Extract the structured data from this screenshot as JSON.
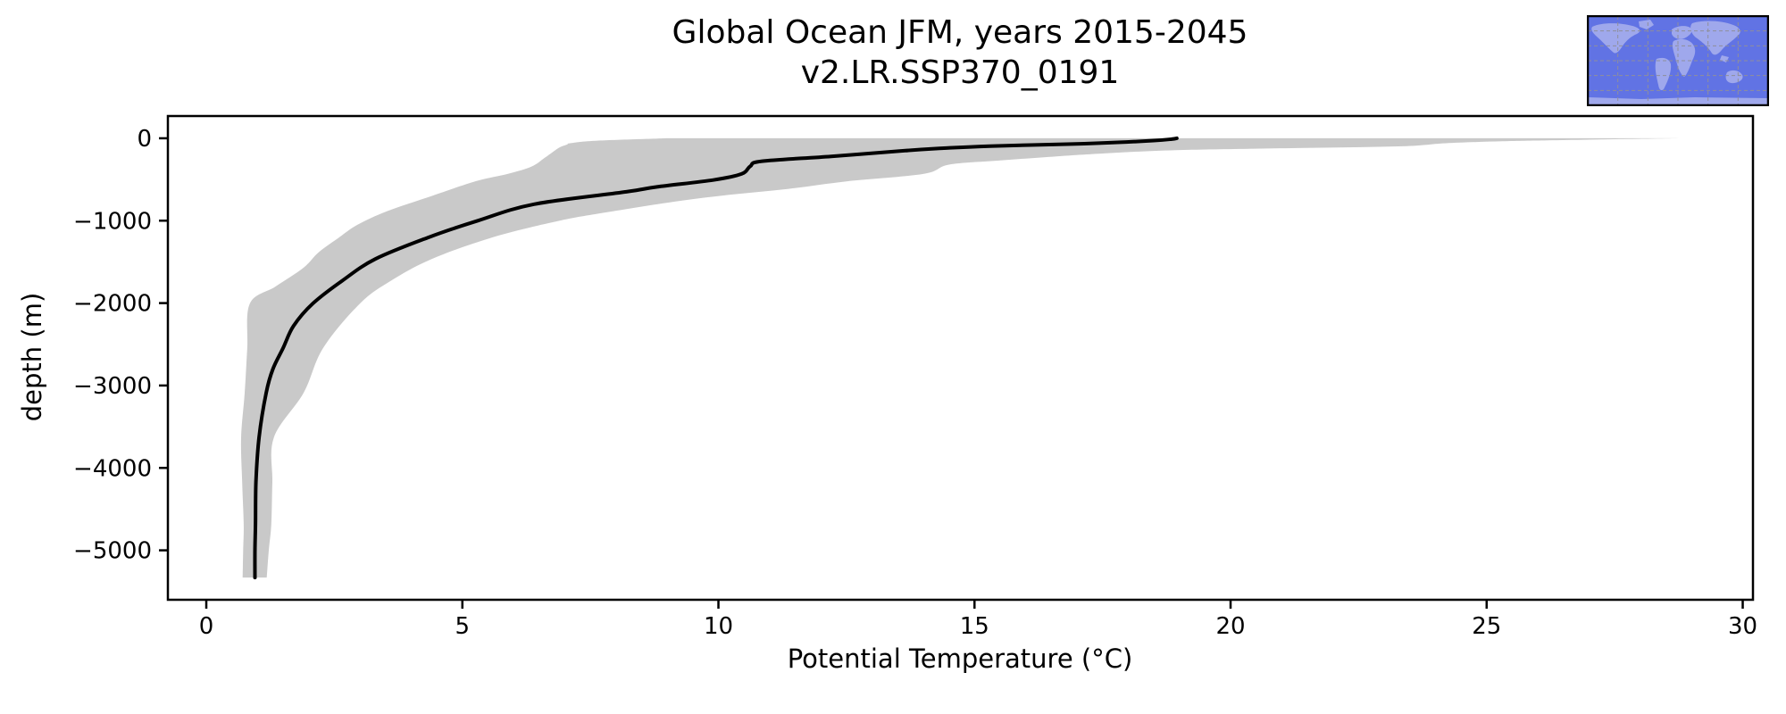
{
  "title": {
    "line1": "Global Ocean JFM, years 2015-2045",
    "line2": "v2.LR.SSP370_0191"
  },
  "chart_data": {
    "type": "line",
    "title": "Global Ocean JFM, years 2015-2045\nv2.LR.SSP370_0191",
    "xlabel": "Potential Temperature (°C)",
    "ylabel": "depth (m)",
    "xlim": [
      -0.75,
      30.2
    ],
    "ylim": [
      -5600,
      270
    ],
    "xticks": [
      0,
      5,
      10,
      15,
      20,
      25,
      30
    ],
    "yticks": [
      0,
      -1000,
      -2000,
      -3000,
      -4000,
      -5000
    ],
    "grid": false,
    "legend": "none",
    "line_color": "#000000",
    "band_color": "#c9c9c9",
    "series": [
      {
        "name": "mean_profile",
        "style": "line",
        "points_temp_depth": [
          [
            18.95,
            0
          ],
          [
            18.85,
            -10
          ],
          [
            18.5,
            -28
          ],
          [
            17.8,
            -50
          ],
          [
            16.9,
            -70
          ],
          [
            15.3,
            -95
          ],
          [
            14.4,
            -120
          ],
          [
            13.65,
            -150
          ],
          [
            12.2,
            -220
          ],
          [
            10.85,
            -278
          ],
          [
            10.62,
            -340
          ],
          [
            10.45,
            -433
          ],
          [
            9.9,
            -506
          ],
          [
            8.8,
            -590
          ],
          [
            8.2,
            -650
          ],
          [
            6.4,
            -800
          ],
          [
            5.3,
            -1000
          ],
          [
            4.35,
            -1200
          ],
          [
            3.3,
            -1465
          ],
          [
            2.65,
            -1730
          ],
          [
            2.08,
            -2005
          ],
          [
            1.7,
            -2280
          ],
          [
            1.5,
            -2546
          ],
          [
            1.3,
            -2800
          ],
          [
            1.17,
            -3088
          ],
          [
            1.03,
            -3630
          ],
          [
            0.97,
            -4171
          ],
          [
            0.96,
            -4680
          ],
          [
            0.95,
            -5000
          ],
          [
            0.95,
            -5330
          ]
        ]
      },
      {
        "name": "envelope_min",
        "style": "band_edge",
        "points_temp_depth": [
          [
            9.0,
            0
          ],
          [
            7.6,
            -30
          ],
          [
            7.1,
            -60
          ],
          [
            7.05,
            -75
          ],
          [
            6.9,
            -110
          ],
          [
            6.78,
            -160
          ],
          [
            6.6,
            -240
          ],
          [
            6.35,
            -343
          ],
          [
            5.9,
            -430
          ],
          [
            5.27,
            -520
          ],
          [
            4.4,
            -700
          ],
          [
            3.53,
            -885
          ],
          [
            2.95,
            -1050
          ],
          [
            2.6,
            -1200
          ],
          [
            2.2,
            -1380
          ],
          [
            1.9,
            -1570
          ],
          [
            1.35,
            -1800
          ],
          [
            0.85,
            -2005
          ],
          [
            0.8,
            -2546
          ],
          [
            0.75,
            -3088
          ],
          [
            0.68,
            -3630
          ],
          [
            0.7,
            -4171
          ],
          [
            0.73,
            -4680
          ],
          [
            0.72,
            -5000
          ],
          [
            0.71,
            -5330
          ]
        ]
      },
      {
        "name": "envelope_max",
        "style": "band_edge",
        "points_temp_depth": [
          [
            28.8,
            0
          ],
          [
            27.5,
            -12
          ],
          [
            26.2,
            -25
          ],
          [
            25.3,
            -36
          ],
          [
            24.2,
            -60
          ],
          [
            23.35,
            -97
          ],
          [
            21.3,
            -119
          ],
          [
            18.94,
            -144
          ],
          [
            17.5,
            -185
          ],
          [
            16.6,
            -220
          ],
          [
            15.45,
            -271
          ],
          [
            14.5,
            -320
          ],
          [
            14.0,
            -433
          ],
          [
            12.5,
            -523
          ],
          [
            11.37,
            -614
          ],
          [
            10.21,
            -686
          ],
          [
            9.05,
            -777
          ],
          [
            7.8,
            -900
          ],
          [
            6.9,
            -1000
          ],
          [
            5.6,
            -1200
          ],
          [
            4.4,
            -1465
          ],
          [
            3.6,
            -1730
          ],
          [
            3.0,
            -2005
          ],
          [
            2.28,
            -2546
          ],
          [
            1.9,
            -3088
          ],
          [
            1.32,
            -3630
          ],
          [
            1.29,
            -4171
          ],
          [
            1.27,
            -4680
          ],
          [
            1.22,
            -5000
          ],
          [
            1.18,
            -5330
          ]
        ]
      }
    ]
  },
  "inset_map": {
    "ocean_color": "#6173e4",
    "land_color": "#9fa8ec",
    "gridline_color": "#8f8f9b",
    "border_color": "#000000"
  }
}
